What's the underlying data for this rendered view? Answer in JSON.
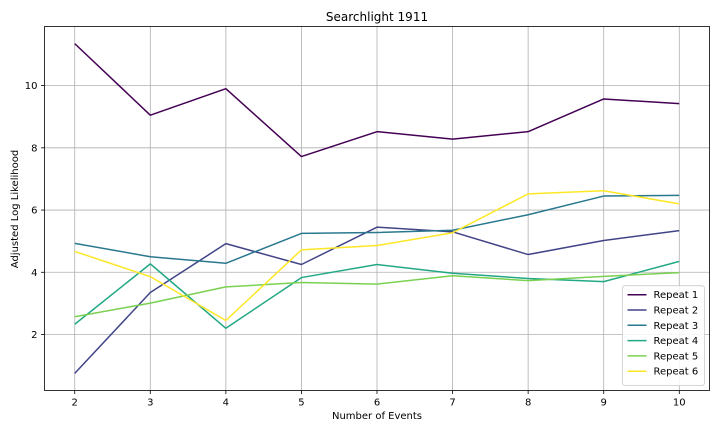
{
  "chart_data": {
    "type": "line",
    "title": "Searchlight 1911",
    "xlabel": "Number of Events",
    "ylabel": "Adjusted Log Likelihood",
    "x": [
      2,
      3,
      4,
      5,
      6,
      7,
      8,
      9,
      10
    ],
    "xlim": [
      1.6,
      10.4
    ],
    "ylim": [
      0.2,
      11.9
    ],
    "yticks": [
      2,
      4,
      6,
      8,
      10
    ],
    "grid": true,
    "legend_position": "lower-right",
    "series": [
      {
        "name": "Repeat 1",
        "color": "#440154",
        "values": [
          11.35,
          9.05,
          9.9,
          7.72,
          8.52,
          8.28,
          8.52,
          9.57,
          9.42
        ]
      },
      {
        "name": "Repeat 2",
        "color": "#414487",
        "values": [
          0.75,
          3.35,
          4.92,
          4.25,
          5.45,
          5.3,
          4.57,
          5.02,
          5.34
        ]
      },
      {
        "name": "Repeat 3",
        "color": "#2a788e",
        "values": [
          4.93,
          4.5,
          4.29,
          5.25,
          5.28,
          5.35,
          5.85,
          6.45,
          6.47
        ]
      },
      {
        "name": "Repeat 4",
        "color": "#22a884",
        "values": [
          2.33,
          4.27,
          2.2,
          3.83,
          4.25,
          3.97,
          3.8,
          3.7,
          4.35
        ]
      },
      {
        "name": "Repeat 5",
        "color": "#7ad151",
        "values": [
          2.57,
          3.01,
          3.53,
          3.67,
          3.62,
          3.89,
          3.73,
          3.87,
          3.99
        ]
      },
      {
        "name": "Repeat 6",
        "color": "#fde725",
        "values": [
          4.67,
          3.86,
          2.45,
          4.72,
          4.86,
          5.27,
          6.52,
          6.62,
          6.2
        ]
      }
    ]
  }
}
